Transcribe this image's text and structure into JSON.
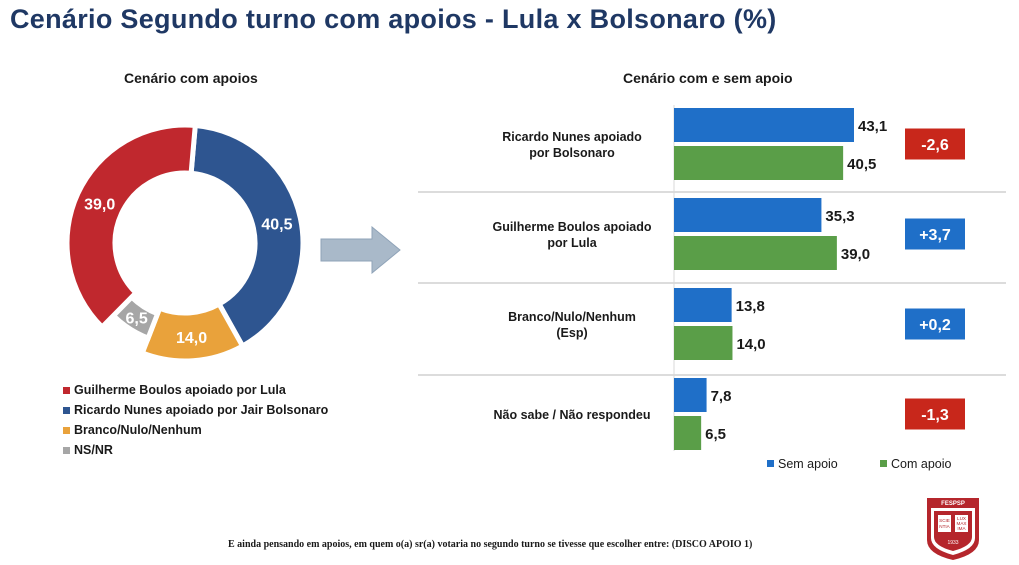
{
  "page": {
    "title": "Cenário Segundo turno com apoios -  Lula x Bolsonaro (%)"
  },
  "left": {
    "subtitle": "Cenário com apoios"
  },
  "right": {
    "subtitle": "Cenário com e sem apoio"
  },
  "footnote": "E ainda pensando em apoios, em quem o(a) sr(a) votaria no segundo turno se tivesse que escolher entre: (DISCO APOIO 1)",
  "seal": {
    "top": "FESPSP",
    "text_lines": [
      "SCIE",
      "LUX",
      "NTIA",
      "MAX",
      "IMA"
    ],
    "year": "1933"
  },
  "colors": {
    "lula": "#c0282e",
    "nunes": "#2e5590",
    "branco": "#e9a23b",
    "nsnr": "#a6a6a6",
    "sem_apoio": "#1f6fc8",
    "com_apoio": "#5a9e48",
    "diff_negative": "#c8271b",
    "diff_positive": "#1f6fc8",
    "arrow": "#a9b9c9"
  },
  "chart_data": [
    {
      "type": "pie",
      "style": "donut",
      "title": "Cenário com apoios",
      "slices": [
        {
          "label": "Ricardo Nunes apoiado por Jair Bolsonaro",
          "value": 40.5,
          "display": "40,5",
          "color": "#2e5590"
        },
        {
          "label": "Branco/Nulo/Nenhum",
          "value": 14.0,
          "display": "14,0",
          "color": "#e9a23b"
        },
        {
          "label": "NS/NR",
          "value": 6.5,
          "display": "6,5",
          "color": "#a6a6a6"
        },
        {
          "label": "Guilherme Boulos apoiado por Lula",
          "value": 39.0,
          "display": "39,0",
          "color": "#c0282e"
        }
      ],
      "legend": [
        {
          "label": "Guilherme Boulos apoiado por Lula",
          "color": "#c0282e"
        },
        {
          "label": "Ricardo Nunes apoiado por Jair Bolsonaro",
          "color": "#2e5590"
        },
        {
          "label": "Branco/Nulo/Nenhum",
          "color": "#e9a23b"
        },
        {
          "label": "NS/NR",
          "color": "#a6a6a6"
        }
      ],
      "legend_position": "bottom-left"
    },
    {
      "type": "bar",
      "orientation": "horizontal",
      "title": "Cenário com e sem apoio",
      "categories": [
        {
          "lines": [
            "Ricardo Nunes apoiado",
            "por Bolsonaro"
          ]
        },
        {
          "lines": [
            "Guilherme Boulos apoiado",
            "por Lula"
          ]
        },
        {
          "lines": [
            "Branco/Nulo/Nenhum",
            "(Esp)"
          ]
        },
        {
          "lines": [
            "Não sabe / Não respondeu"
          ]
        }
      ],
      "series": [
        {
          "name": "Sem apoio",
          "values": [
            43.1,
            35.3,
            13.8,
            7.8
          ],
          "display": [
            "43,1",
            "35,3",
            "13,8",
            "7,8"
          ],
          "color": "#1f6fc8"
        },
        {
          "name": "Com apoio",
          "values": [
            40.5,
            39.0,
            14.0,
            6.5
          ],
          "display": [
            "40,5",
            "39,0",
            "14,0",
            "6,5"
          ],
          "color": "#5a9e48"
        }
      ],
      "differences": [
        "-2,6",
        "+3,7",
        "+0,2",
        "-1,3"
      ],
      "legend_position": "bottom-right"
    }
  ]
}
